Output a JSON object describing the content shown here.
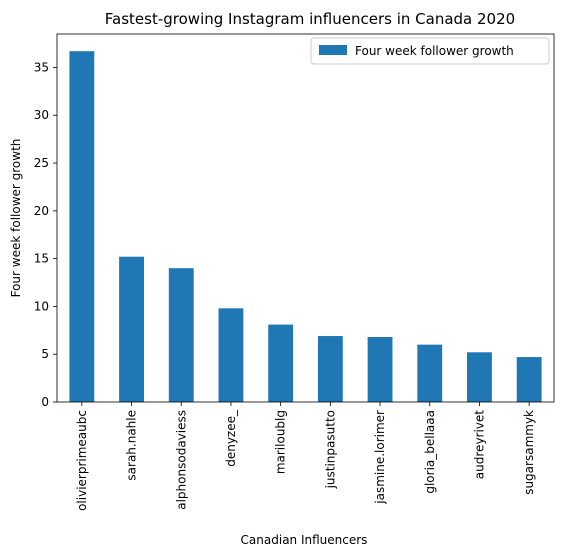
{
  "chart_data": {
    "type": "bar",
    "title": "Fastest-growing Instagram influencers in Canada 2020",
    "xlabel": "Canadian Influencers",
    "ylabel": "Four week follower growth",
    "categories": [
      "olivierprimeaubc",
      "sarah.nahle",
      "alphonsodaviess",
      "denyzee_",
      "mariloublg",
      "justinpasutto",
      "jasmine.lorimer",
      "gloria_bellaaa",
      "audreyrivet",
      "sugarsammyk"
    ],
    "series": [
      {
        "name": "Four week follower growth",
        "values": [
          36.7,
          15.2,
          14.0,
          9.8,
          8.1,
          6.9,
          6.8,
          6.0,
          5.2,
          4.7
        ]
      }
    ],
    "ylim": [
      0,
      38.5
    ],
    "yticks": [
      0,
      5,
      10,
      15,
      20,
      25,
      30,
      35
    ],
    "bar_color": "#1f77b4",
    "legend": "top-right",
    "grid": false
  }
}
